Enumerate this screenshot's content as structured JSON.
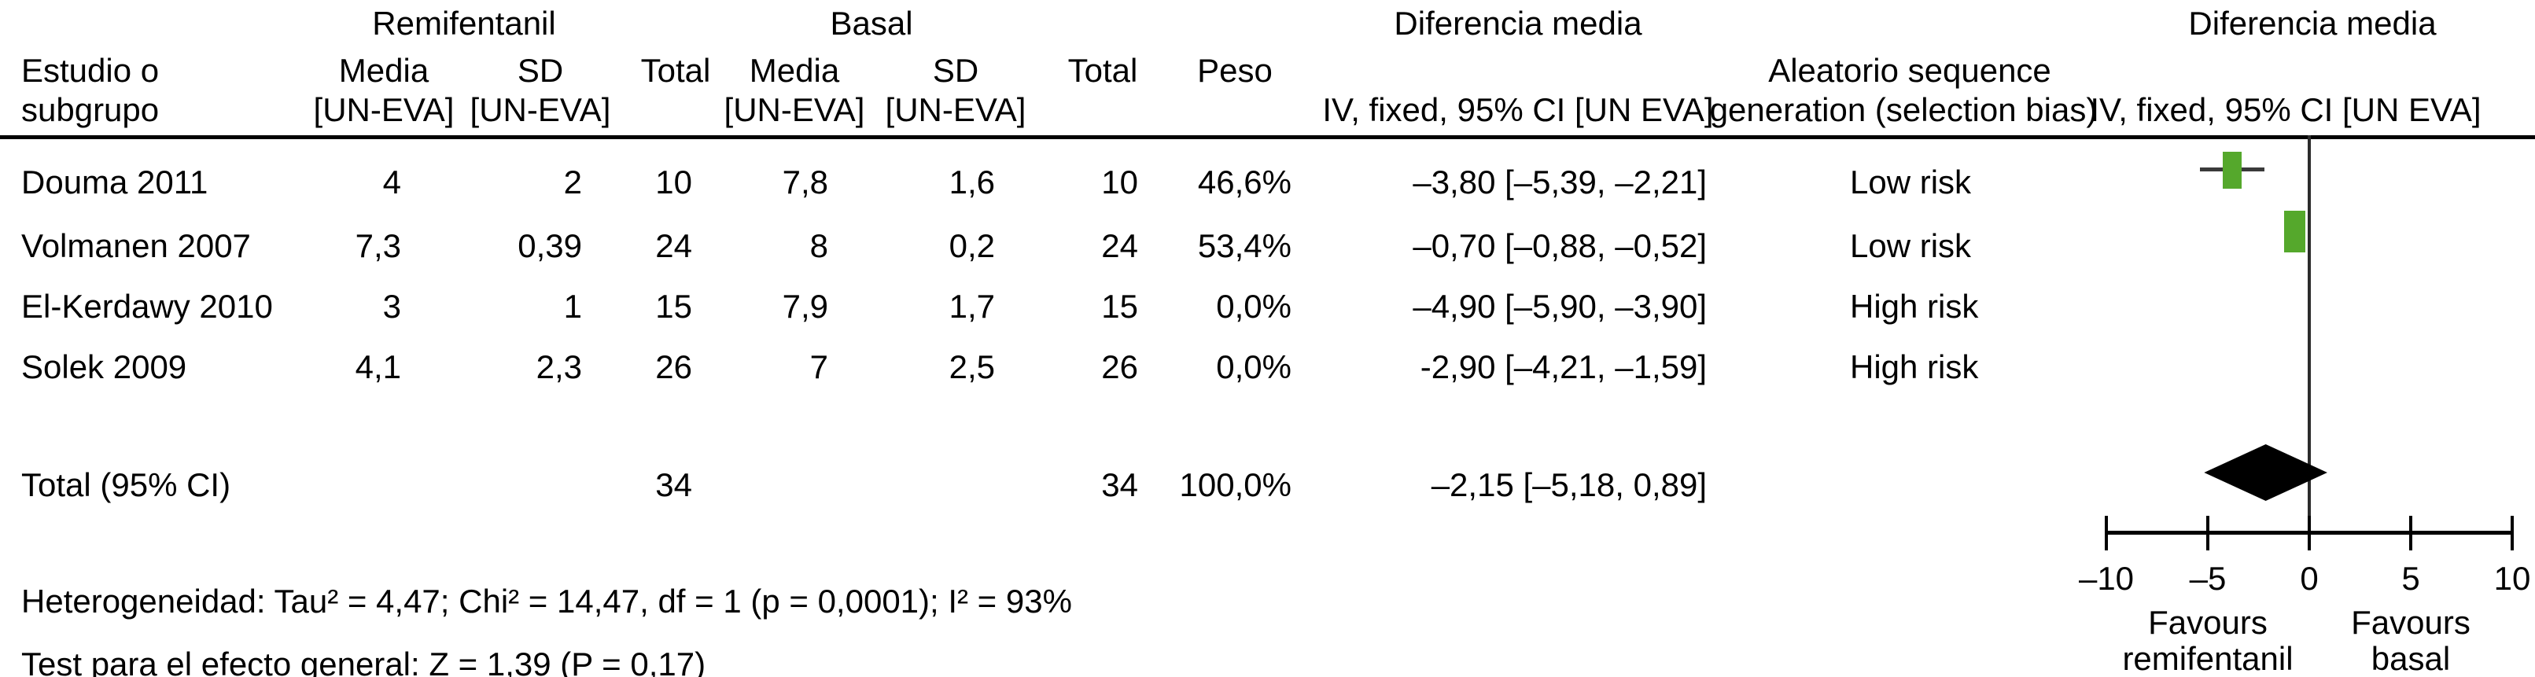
{
  "colors": {
    "marker_green": "#55a82c",
    "whisker_gray": "#3a3a3a",
    "ink": "#000000",
    "background": "#ffffff"
  },
  "header": {
    "group_remifentanil": "Remifentanil",
    "group_basal": "Basal",
    "group_diff_left": "Diferencia media",
    "group_diff_right": "Diferencia media",
    "study_line1": "Estudio o",
    "study_line2": "subgrupo",
    "media": "Media",
    "sd": "SD",
    "total": "Total",
    "peso": "Peso",
    "un_eva": "[UN-EVA]",
    "ci_header_left": "IV, fixed, 95% CI [UN EVA]",
    "bias_line1": "Aleatorio sequence",
    "bias_line2": "generation (selection bias)",
    "ci_header_right": "IV, fixed, 95% CI [UN EVA]"
  },
  "studies": [
    {
      "name": "Douma 2011",
      "media_r": "4",
      "sd_r": "2",
      "total_r": "10",
      "media_b": "7,8",
      "sd_b": "1,6",
      "total_b": "10",
      "peso": "46,6%",
      "ci": "–3,80 [–5,39, –2,21]",
      "risk": "Low risk"
    },
    {
      "name": "Volmanen 2007",
      "media_r": "7,3",
      "sd_r": "0,39",
      "total_r": "24",
      "media_b": "8",
      "sd_b": "0,2",
      "total_b": "24",
      "peso": "53,4%",
      "ci": "–0,70 [–0,88, –0,52]",
      "risk": "Low risk"
    },
    {
      "name": "El-Kerdawy 2010",
      "media_r": "3",
      "sd_r": "1",
      "total_r": "15",
      "media_b": "7,9",
      "sd_b": "1,7",
      "total_b": "15",
      "peso": "0,0%",
      "ci": "–4,90 [–5,90, –3,90]",
      "risk": "High risk"
    },
    {
      "name": "Solek 2009",
      "media_r": "4,1",
      "sd_r": "2,3",
      "total_r": "26",
      "media_b": "7",
      "sd_b": "2,5",
      "total_b": "26",
      "peso": "0,0%",
      "ci": "-2,90 [–4,21, –1,59]",
      "risk": "High risk"
    }
  ],
  "total_row": {
    "label": "Total (95% CI)",
    "total_r": "34",
    "total_b": "34",
    "peso": "100,0%",
    "ci": "–2,15 [–5,18, 0,89]"
  },
  "footer": {
    "heterogeneity": "Heterogeneidad: Tau² = 4,47; Chi² = 14,47, df = 1 (p = 0,0001); I² = 93%",
    "overall_test": "Test para el efecto general: Z = 1,39 (P = 0,17)"
  },
  "chart_data": {
    "type": "forest",
    "effect_measure": "Diferencia media, IV, fixed, 95% CI [UN EVA]",
    "xlim": [
      -10,
      10
    ],
    "axis_ticks": [
      -10,
      -5,
      0,
      5,
      10
    ],
    "favours_left": [
      "Favours",
      "remifentanil"
    ],
    "favours_right": [
      "Favours",
      "basal"
    ],
    "studies": [
      {
        "name": "Douma 2011",
        "estimate": -3.8,
        "ci_low": -5.39,
        "ci_high": -2.21,
        "weight_pct": 46.6,
        "risk": "Low risk"
      },
      {
        "name": "Volmanen 2007",
        "estimate": -0.7,
        "ci_low": -0.88,
        "ci_high": -0.52,
        "weight_pct": 53.4,
        "risk": "Low risk"
      },
      {
        "name": "El-Kerdawy 2010",
        "estimate": -4.9,
        "ci_low": -5.9,
        "ci_high": -3.9,
        "weight_pct": 0.0,
        "risk": "High risk"
      },
      {
        "name": "Solek 2009",
        "estimate": -2.9,
        "ci_low": -4.21,
        "ci_high": -1.59,
        "weight_pct": 0.0,
        "risk": "High risk"
      }
    ],
    "total": {
      "label": "Total (95% CI)",
      "estimate": -2.15,
      "ci_low": -5.18,
      "ci_high": 0.89,
      "weight_pct": 100.0
    }
  }
}
